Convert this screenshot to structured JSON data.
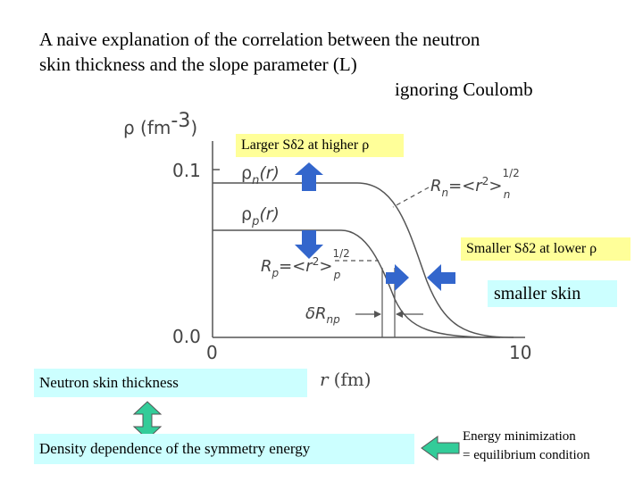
{
  "title": {
    "line1": "A naive explanation of the correlation between the neutron",
    "line2": "skin thickness and the slope parameter (L)",
    "line3": "ignoring Coulomb"
  },
  "figure": {
    "y_axis_label": "ρ (fm",
    "y_axis_exp": "-3",
    "y_ticks": [
      "0.1",
      "0.0"
    ],
    "x_ticks": [
      "0",
      "10"
    ],
    "x_axis_label_var": "r",
    "x_axis_label_unit": "(fm)",
    "rho_n": "ρ",
    "rho_n_sub": "n",
    "rho_n_arg": "(r)",
    "rho_p": "ρ",
    "rho_p_sub": "p",
    "rho_p_arg": "(r)",
    "Rn_label": "R",
    "Rn_sub": "n",
    "Rn_eq": "=<r",
    "Rn_pow": "2",
    "Rn_close": ">",
    "Rn_exp": "1/2",
    "Rp_label": "R",
    "Rp_sub": "p",
    "Rp_eq": "=<r",
    "Rp_pow": "2",
    "Rp_close": ">",
    "Rp_exp": "1/2",
    "dRnp_label": "δR",
    "dRnp_sub": "np"
  },
  "boxes": {
    "larger": "Larger Sδ2 at higher ρ",
    "smaller": "Smaller Sδ2 at lower ρ",
    "smaller_skin": "smaller skin",
    "neutron_skin": "Neutron skin thickness",
    "density_dependence": "Density dependence of the symmetry energy",
    "energy_line1": "Energy minimization",
    "energy_line2": "= equilibrium condition"
  },
  "colors": {
    "arrow_blue": "#3366cc",
    "arrow_green": "#33cc99",
    "box_yellow": "#ffff99",
    "box_cyan": "#ccffff",
    "curve_gray": "#555555"
  }
}
